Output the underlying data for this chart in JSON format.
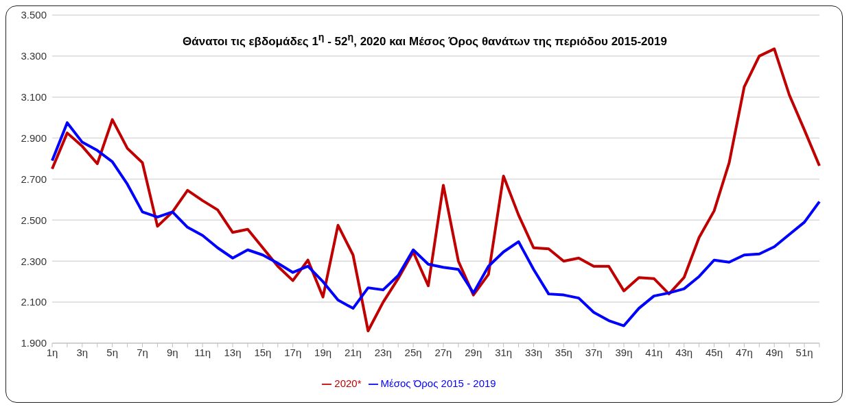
{
  "chart_data": {
    "type": "line",
    "title": "Θάνατοι τις εβδομάδες 1$^{η}$ - 52$^{η}$, 2020 και Μέσος Όρος θανάτων της περιόδου 2015-2019",
    "categories": [
      "1η",
      null,
      "3η",
      null,
      "5η",
      null,
      "7η",
      null,
      "9η",
      null,
      "11η",
      null,
      "13η",
      null,
      "15η",
      null,
      "17η",
      null,
      "19η",
      null,
      "21η",
      null,
      "23η",
      null,
      "25η",
      null,
      "27η",
      null,
      "29η",
      null,
      "31η",
      null,
      "33η",
      null,
      "35η",
      null,
      "37η",
      null,
      "39η",
      null,
      "41η",
      null,
      "43η",
      null,
      "45η",
      null,
      "47η",
      null,
      "49η",
      null,
      "51η",
      null
    ],
    "series": [
      {
        "name": "2020*",
        "color": "#c00000",
        "values": [
          2750,
          2925,
          2860,
          2775,
          2990,
          2850,
          2780,
          2470,
          2540,
          2645,
          2595,
          2550,
          2440,
          2455,
          2365,
          2275,
          2205,
          2305,
          2125,
          2475,
          2330,
          1960,
          2100,
          2215,
          2345,
          2180,
          2670,
          2300,
          2135,
          2235,
          2715,
          2525,
          2365,
          2360,
          2300,
          2315,
          2275,
          2275,
          2155,
          2220,
          2215,
          2140,
          2220,
          2415,
          2545,
          2780,
          3150,
          3300,
          3335,
          3110,
          2940,
          2765
        ]
      },
      {
        "name": "Μέσος Όρος 2015 - 2019",
        "color": "#0000ff",
        "values": [
          2790,
          2975,
          2880,
          2840,
          2785,
          2675,
          2540,
          2515,
          2540,
          2465,
          2425,
          2365,
          2315,
          2355,
          2330,
          2290,
          2245,
          2275,
          2200,
          2110,
          2070,
          2170,
          2160,
          2230,
          2355,
          2285,
          2270,
          2260,
          2145,
          2275,
          2345,
          2395,
          2260,
          2140,
          2135,
          2120,
          2050,
          2010,
          1985,
          2070,
          2130,
          2145,
          2165,
          2225,
          2305,
          2295,
          2330,
          2335,
          2370,
          2430,
          2490,
          2590
        ]
      }
    ],
    "ylim": [
      1900,
      3500
    ],
    "yticks": [
      {
        "value": 1900,
        "label": "1.900"
      },
      {
        "value": 2100,
        "label": "2.100"
      },
      {
        "value": 2300,
        "label": "2.300"
      },
      {
        "value": 2500,
        "label": "2.500"
      },
      {
        "value": 2700,
        "label": "2.700"
      },
      {
        "value": 2900,
        "label": "2.900"
      },
      {
        "value": 3100,
        "label": "3.100"
      },
      {
        "value": 3300,
        "label": "3.300"
      },
      {
        "value": 3500,
        "label": "3.500"
      }
    ],
    "grid": "y",
    "legend": "bottom"
  }
}
